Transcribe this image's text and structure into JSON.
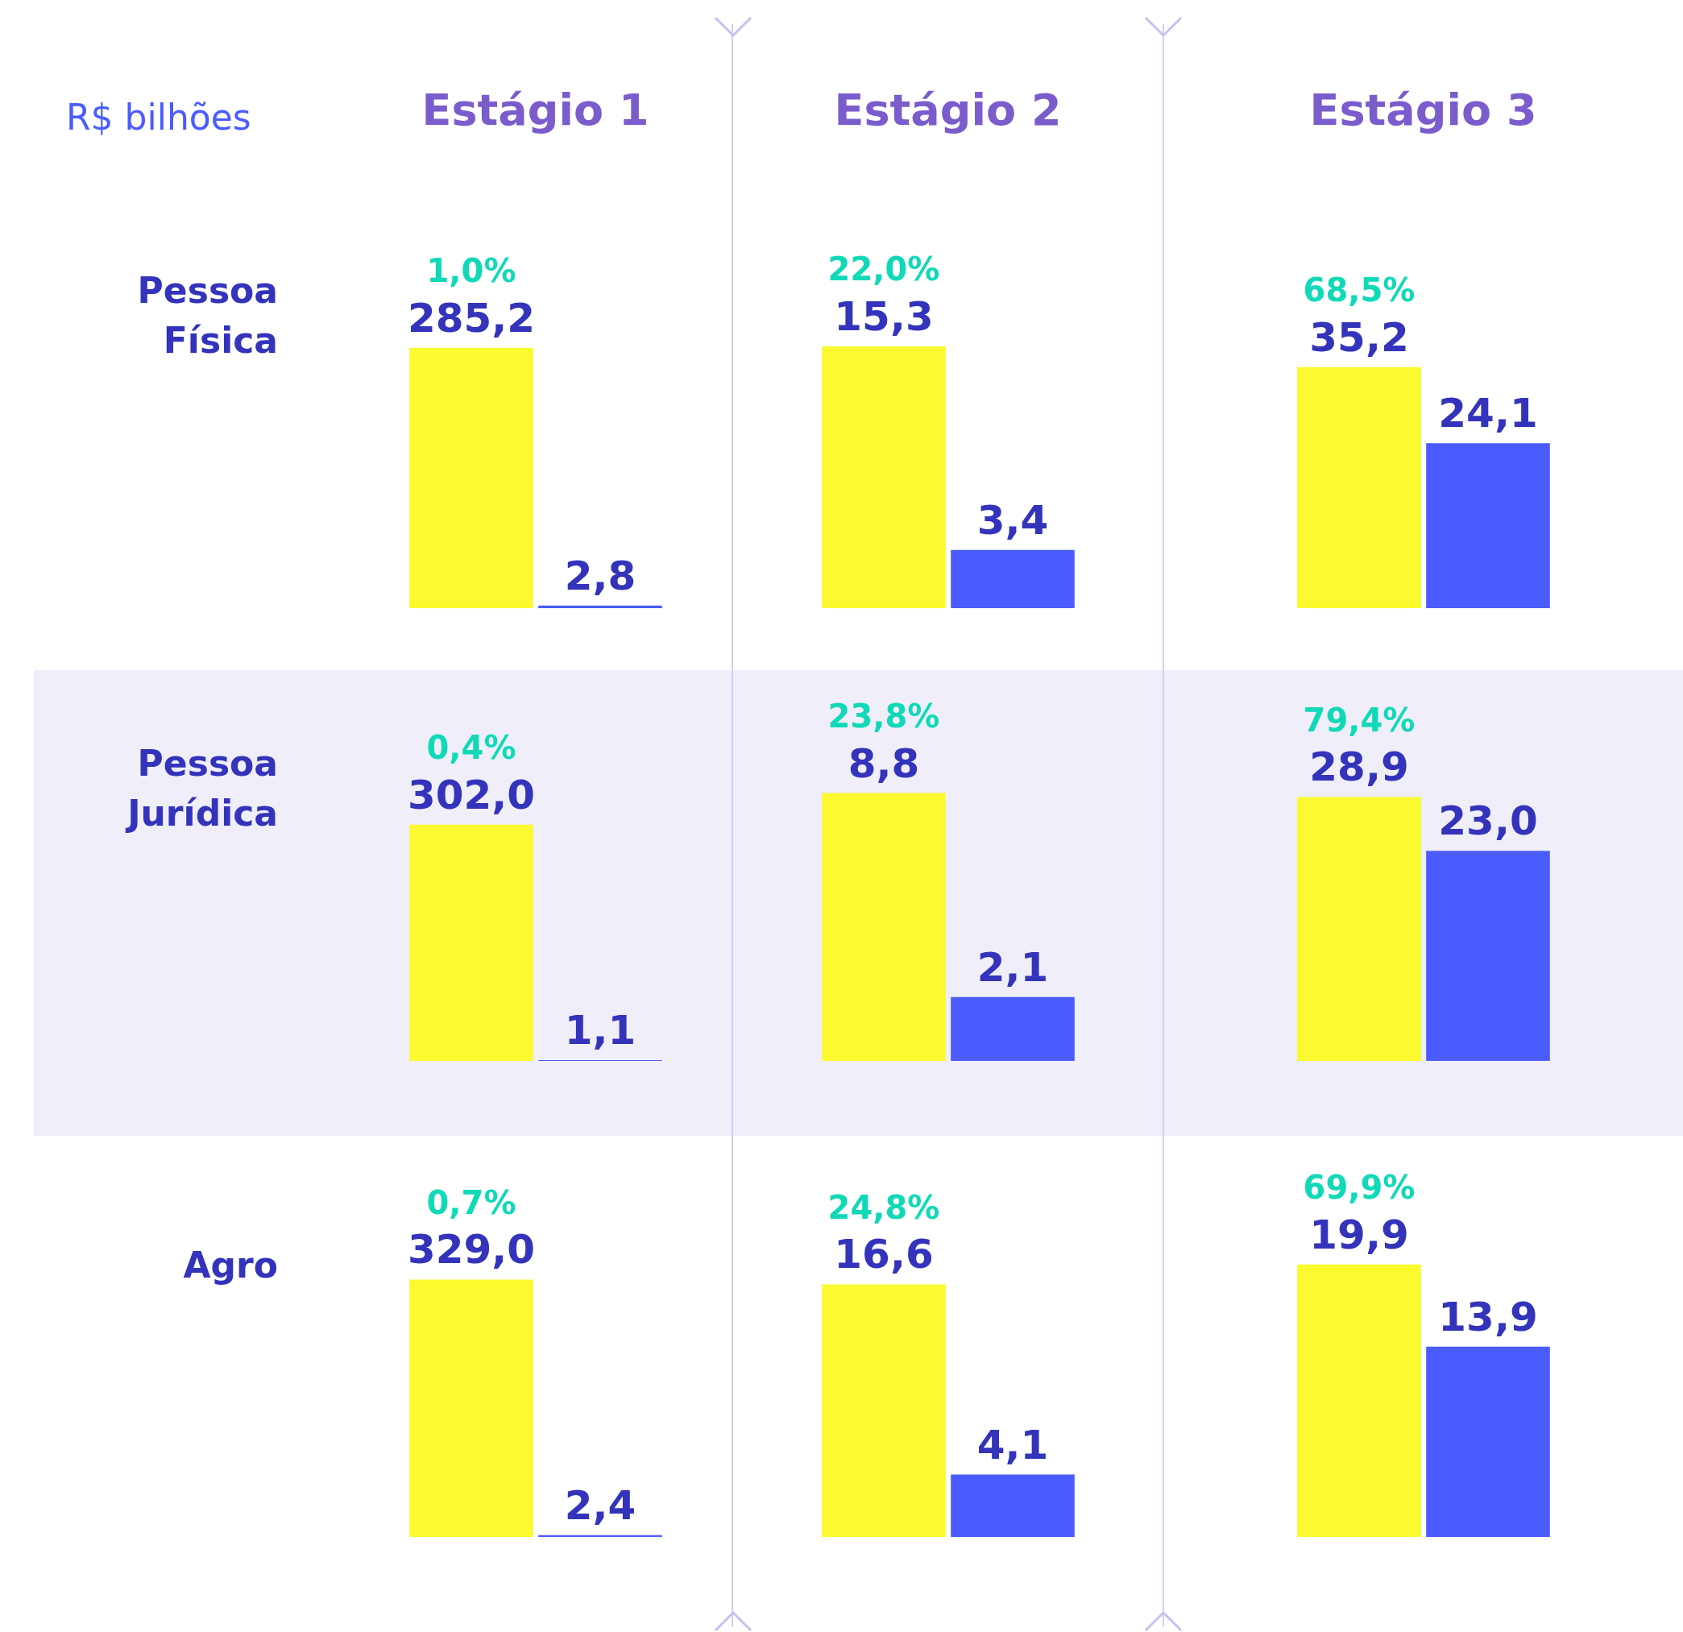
{
  "chart_data": [
    {
      "type": "bar",
      "title": "Estágio 1",
      "subtitle": "R$ bilhões",
      "ylabel": "Pessoa Física",
      "categories": [
        null,
        null
      ],
      "values": [
        285.2,
        2.8
      ],
      "value_labels": [
        "285,2",
        "2,8"
      ],
      "colors": [
        "#fafa2e",
        "#4a5cff"
      ],
      "annotations": [
        "1,0%"
      ],
      "tick_labels": false
    },
    {
      "type": "bar",
      "title": "Estágio 2",
      "categories": [
        null,
        null
      ],
      "values": [
        15.3,
        3.4
      ],
      "value_labels": [
        "15,3",
        "3,4"
      ],
      "colors": [
        "#fafa2e",
        "#4a5cff"
      ],
      "annotations": [
        "22,0%"
      ],
      "tick_labels": false
    },
    {
      "type": "bar",
      "title": "Estágio 3",
      "categories": [
        null,
        null
      ],
      "values": [
        35.2,
        24.1
      ],
      "value_labels": [
        "35,2",
        "24,1"
      ],
      "colors": [
        "#fafa2e",
        "#4a5cff"
      ],
      "annotations": [
        "68,5%"
      ],
      "tick_labels": false
    },
    {
      "type": "bar",
      "ylabel": "Pessoa Jurídica",
      "categories": [
        null,
        null
      ],
      "values": [
        302.0,
        1.1
      ],
      "value_labels": [
        "302,0",
        "1,1"
      ],
      "colors": [
        "#fafa2e",
        "#4a5cff"
      ],
      "annotations": [
        "0,4%"
      ],
      "tick_labels": false
    },
    {
      "type": "bar",
      "categories": [
        null,
        null
      ],
      "values": [
        8.8,
        2.1
      ],
      "value_labels": [
        "8,8",
        "2,1"
      ],
      "colors": [
        "#fafa2e",
        "#4a5cff"
      ],
      "annotations": [
        "23,8%"
      ],
      "tick_labels": false
    },
    {
      "type": "bar",
      "categories": [
        null,
        null
      ],
      "values": [
        28.9,
        23.0
      ],
      "value_labels": [
        "28,9",
        "23,0"
      ],
      "colors": [
        "#fafa2e",
        "#4a5cff"
      ],
      "annotations": [
        "79,4%"
      ],
      "tick_labels": false
    },
    {
      "type": "bar",
      "ylabel": "Agro",
      "categories": [
        null,
        null
      ],
      "values": [
        329.0,
        2.4
      ],
      "value_labels": [
        "329,0",
        "2,4"
      ],
      "colors": [
        "#fafa2e",
        "#4a5cff"
      ],
      "annotations": [
        "0,7%"
      ],
      "tick_labels": false
    },
    {
      "type": "bar",
      "categories": [
        null,
        null
      ],
      "values": [
        16.6,
        4.1
      ],
      "value_labels": [
        "16,6",
        "4,1"
      ],
      "colors": [
        "#fafa2e",
        "#4a5cff"
      ],
      "annotations": [
        "24,8%"
      ],
      "tick_labels": false
    },
    {
      "type": "bar",
      "categories": [
        null,
        null
      ],
      "values": [
        19.9,
        13.9
      ],
      "value_labels": [
        "19,9",
        "13,9"
      ],
      "colors": [
        "#fafa2e",
        "#4a5cff"
      ],
      "annotations": [
        "69,9%"
      ],
      "tick_labels": false
    }
  ]
}
